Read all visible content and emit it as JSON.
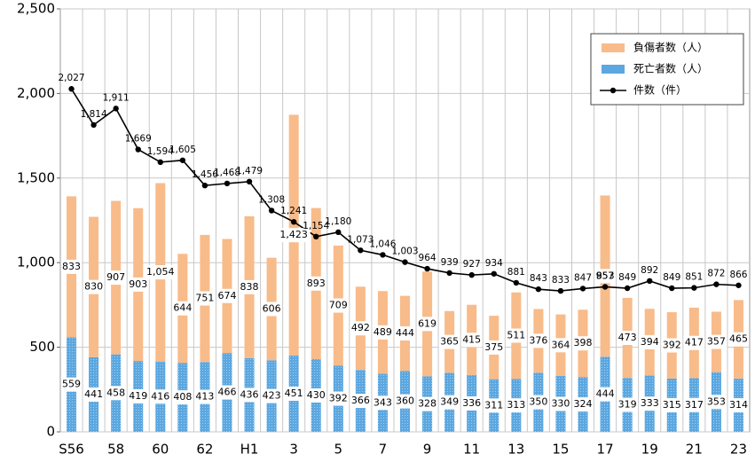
{
  "chart_data": {
    "type": "bar",
    "stacked": true,
    "categories": [
      "S56",
      null,
      "58",
      null,
      "60",
      null,
      "62",
      null,
      "H1",
      null,
      "3",
      null,
      "5",
      null,
      "7",
      null,
      "9",
      null,
      "11",
      null,
      "13",
      null,
      "15",
      null,
      "17",
      null,
      "19",
      null,
      "21",
      null,
      "23"
    ],
    "series": [
      {
        "name": "死亡者数（人）",
        "type": "bar",
        "color": "#5ba7e0",
        "values": [
          559,
          441,
          458,
          419,
          416,
          408,
          413,
          466,
          436,
          423,
          451,
          430,
          392,
          366,
          343,
          360,
          328,
          349,
          336,
          311,
          313,
          350,
          330,
          324,
          444,
          319,
          333,
          315,
          317,
          353,
          314
        ]
      },
      {
        "name": "負傷者数（人）",
        "type": "bar",
        "color": "#f8bb8a",
        "values": [
          833,
          830,
          907,
          903,
          1054,
          644,
          751,
          674,
          838,
          606,
          1423,
          893,
          709,
          492,
          489,
          444,
          619,
          365,
          415,
          375,
          511,
          376,
          364,
          398,
          953,
          473,
          394,
          392,
          417,
          357,
          465
        ],
        "value_labels": [
          "833",
          "830",
          "907",
          "903",
          "1,054",
          "644",
          "751",
          "674",
          "838",
          "606",
          "1,423",
          "893",
          "709",
          "492",
          "489",
          "444",
          "619",
          "365",
          "415",
          "375",
          "511",
          "376",
          "364",
          "398",
          "953",
          "473",
          "394",
          "392",
          "417",
          "357",
          "465"
        ]
      },
      {
        "name": "件数（件）",
        "type": "line",
        "color": "#000000",
        "values": [
          2027,
          1814,
          1911,
          1669,
          1594,
          1605,
          1456,
          1468,
          1479,
          1308,
          1241,
          1154,
          1180,
          1073,
          1046,
          1003,
          964,
          939,
          927,
          934,
          881,
          843,
          833,
          847,
          857,
          849,
          892,
          849,
          851,
          872,
          866
        ],
        "value_labels": [
          "2,027",
          "1,814",
          "1,911",
          "1,669",
          "1,594",
          "1,605",
          "1,456",
          "1,468",
          "1,479",
          "1,308",
          "1,241",
          "1,154",
          "1,180",
          "1,073",
          "1,046",
          "1,003",
          "964",
          "939",
          "927",
          "934",
          "881",
          "843",
          "833",
          "847",
          "857",
          "849",
          "892",
          "849",
          "851",
          "872",
          "866"
        ]
      }
    ],
    "ylim": [
      0,
      2500
    ],
    "yticks": [
      0,
      500,
      {
        "value": 1000,
        "label": "1,000"
      },
      {
        "value": 1500,
        "label": "1,500"
      },
      {
        "value": 2000,
        "label": "2,000"
      },
      {
        "value": 2500,
        "label": "2,500"
      }
    ],
    "grid": true,
    "legend": "top-right"
  }
}
